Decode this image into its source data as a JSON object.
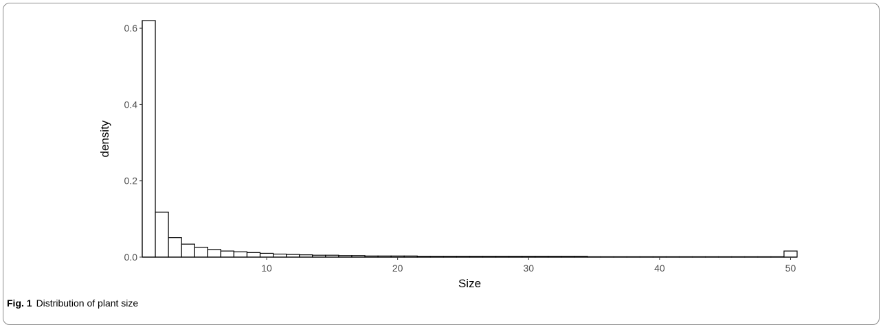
{
  "chart_data": {
    "type": "bar",
    "xlabel": "Size",
    "ylabel": "density",
    "xlim": [
      0.5,
      50.5
    ],
    "ylim": [
      0,
      0.62
    ],
    "x_ticks": [
      10,
      20,
      30,
      40,
      50
    ],
    "y_ticks": [
      0.0,
      0.2,
      0.4,
      0.6
    ],
    "y_tick_labels": [
      "0.0",
      "0.2",
      "0.4",
      "0.6"
    ],
    "bins": [
      1,
      2,
      3,
      4,
      5,
      6,
      7,
      8,
      9,
      10,
      11,
      12,
      13,
      14,
      15,
      16,
      17,
      18,
      19,
      20,
      21,
      22,
      23,
      24,
      25,
      26,
      27,
      28,
      29,
      30,
      31,
      32,
      33,
      34,
      35,
      36,
      37,
      38,
      39,
      40,
      41,
      42,
      43,
      44,
      45,
      46,
      47,
      48,
      49,
      50
    ],
    "values": [
      0.62,
      0.118,
      0.051,
      0.034,
      0.026,
      0.02,
      0.016,
      0.014,
      0.012,
      0.01,
      0.008,
      0.007,
      0.006,
      0.005,
      0.005,
      0.004,
      0.004,
      0.003,
      0.003,
      0.003,
      0.003,
      0.002,
      0.002,
      0.002,
      0.002,
      0.002,
      0.002,
      0.002,
      0.002,
      0.002,
      0.002,
      0.002,
      0.002,
      0.002,
      0.001,
      0.001,
      0.001,
      0.001,
      0.001,
      0.001,
      0.001,
      0.001,
      0.001,
      0.001,
      0.001,
      0.001,
      0.001,
      0.001,
      0.001,
      0.016
    ],
    "bar_fill": "#ffffff",
    "bar_stroke": "#000000",
    "grid": false
  },
  "caption": {
    "label": "Fig. 1",
    "text": "Distribution of plant size"
  }
}
